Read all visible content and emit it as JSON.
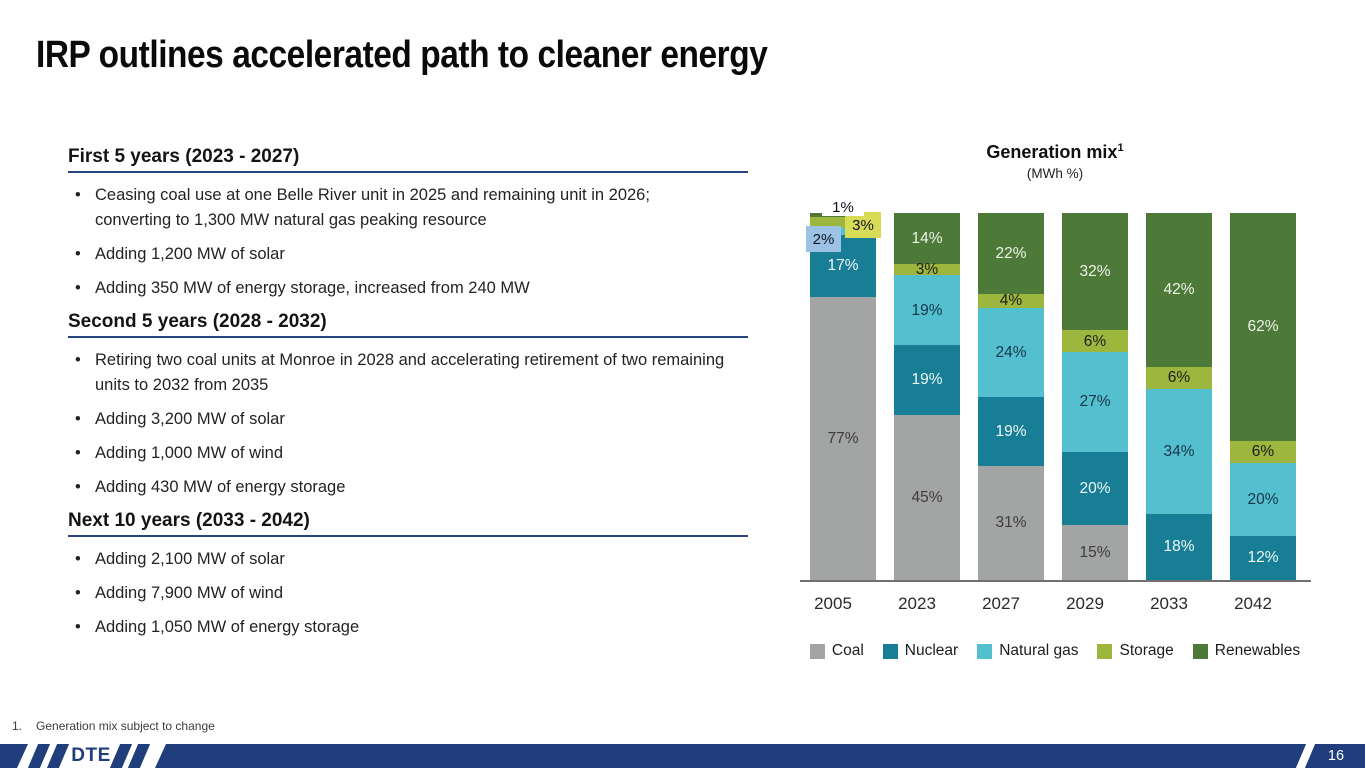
{
  "slide": {
    "title": "IRP outlines accelerated path to cleaner energy",
    "footnote_marker": "1.",
    "footnote_text": "Generation mix subject to change",
    "page_number": "16",
    "brand": "DTE",
    "brand_navy": "#203e7c"
  },
  "sections": [
    {
      "heading": "First 5 years (2023 - 2027)",
      "bullets": [
        "Ceasing coal use at one Belle River unit in 2025 and remaining unit in 2026; converting to 1,300 MW natural gas peaking resource",
        "Adding 1,200 MW of solar",
        "Adding 350 MW of energy storage, increased from 240 MW"
      ]
    },
    {
      "heading": "Second 5 years (2028 - 2032)",
      "bullets": [
        "Retiring two coal units at Monroe in 2028 and accelerating retirement of two remaining units to 2032 from 2035",
        "Adding 3,200 MW of solar",
        "Adding 1,000 MW of wind",
        "Adding 430 MW of energy storage"
      ]
    },
    {
      "heading": "Next 10 years (2033 - 2042)",
      "bullets": [
        "Adding 2,100 MW of solar",
        "Adding 7,900 MW of wind",
        "Adding 1,050 MW of energy storage"
      ]
    }
  ],
  "chart_data": {
    "type": "bar",
    "variant": "stacked-100",
    "title": "Generation mix",
    "title_superscript": "1",
    "subtitle": "(MWh %)",
    "unit": "%",
    "categories": [
      "2005",
      "2023",
      "2027",
      "2029",
      "2033",
      "2042"
    ],
    "series": [
      {
        "name": "Coal",
        "color": "#a3a4a4",
        "label_color": "#3c3c3c",
        "values": [
          77,
          45,
          31,
          15,
          0,
          0
        ]
      },
      {
        "name": "Nuclear",
        "color": "#177e95",
        "label_color": "#f0f7f8",
        "values": [
          17,
          19,
          19,
          20,
          18,
          12
        ]
      },
      {
        "name": "Natural gas",
        "color": "#54bfcf",
        "label_color": "#173647",
        "values": [
          2,
          19,
          24,
          27,
          34,
          20
        ]
      },
      {
        "name": "Storage",
        "color": "#9db63d",
        "label_color": "#1d1d1d",
        "values": [
          3,
          3,
          4,
          6,
          6,
          6
        ]
      },
      {
        "name": "Renewables",
        "color": "#4d7a39",
        "label_color": "#eef3e8",
        "values": [
          1,
          14,
          22,
          32,
          42,
          62
        ]
      }
    ],
    "callouts": [
      {
        "category": "2005",
        "series": "Natural gas",
        "text": "2%",
        "box_color": "#9cc2e5"
      },
      {
        "category": "2005",
        "series": "Storage",
        "text": "3%",
        "box_color": "#d8db56"
      },
      {
        "category": "2005",
        "series": "Renewables",
        "text": "1%",
        "box_color": "#ffffff"
      }
    ],
    "ylim": [
      0,
      100
    ],
    "grid": false,
    "legend_position": "bottom"
  }
}
